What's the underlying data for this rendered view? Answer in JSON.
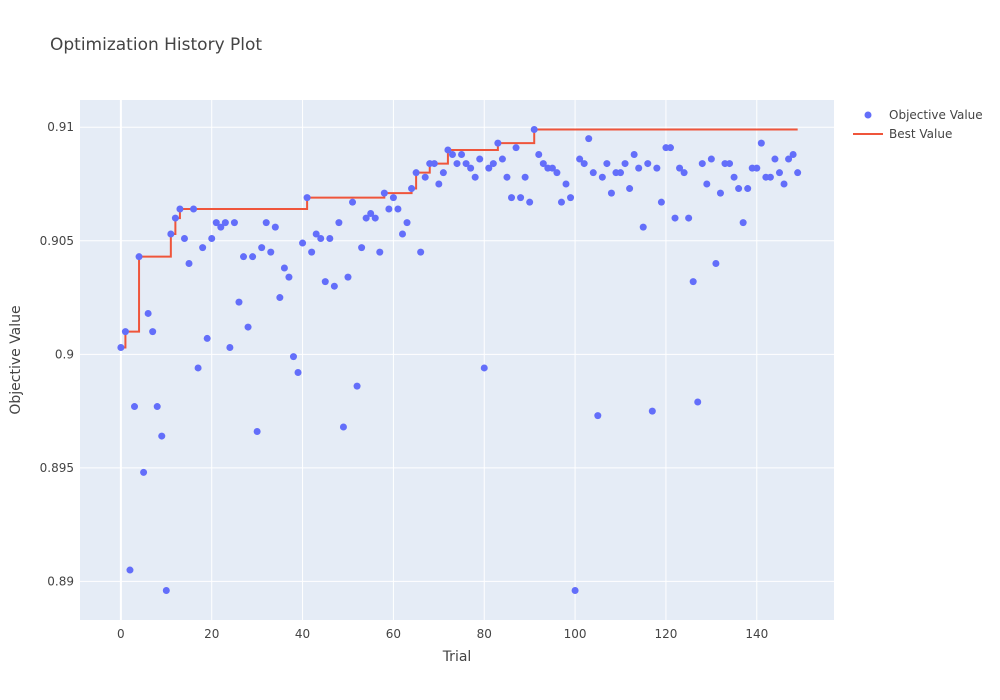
{
  "chart_data": {
    "type": "scatter",
    "title": "Optimization History Plot",
    "xlabel": "Trial",
    "ylabel": "Objective Value",
    "xlim": [
      -9,
      157
    ],
    "ylim": [
      0.8883,
      0.9112
    ],
    "xticks": [
      0,
      20,
      40,
      60,
      80,
      100,
      120,
      140
    ],
    "yticks": [
      0.89,
      0.895,
      0.9,
      0.905,
      0.91
    ],
    "ytick_labels": [
      "0.89",
      "0.895",
      "0.9",
      "0.905",
      "0.91"
    ],
    "grid": true,
    "legend_position": "top-right",
    "series": [
      {
        "name": "Objective Value",
        "mode": "markers",
        "color": "#636efa",
        "x": [
          0,
          1,
          2,
          3,
          4,
          5,
          6,
          7,
          8,
          9,
          10,
          11,
          12,
          13,
          14,
          15,
          16,
          17,
          18,
          19,
          20,
          21,
          22,
          23,
          24,
          25,
          26,
          27,
          28,
          29,
          30,
          31,
          32,
          33,
          34,
          35,
          36,
          37,
          38,
          39,
          40,
          41,
          42,
          43,
          44,
          45,
          46,
          47,
          48,
          49,
          50,
          51,
          52,
          53,
          54,
          55,
          56,
          57,
          58,
          59,
          60,
          61,
          62,
          63,
          64,
          65,
          66,
          67,
          68,
          69,
          70,
          71,
          72,
          73,
          74,
          75,
          76,
          77,
          78,
          79,
          80,
          81,
          82,
          83,
          84,
          85,
          86,
          87,
          88,
          89,
          90,
          91,
          92,
          93,
          94,
          95,
          96,
          97,
          98,
          99,
          100,
          101,
          102,
          103,
          104,
          105,
          106,
          107,
          108,
          109,
          110,
          111,
          112,
          113,
          114,
          115,
          116,
          117,
          118,
          119,
          120,
          121,
          122,
          123,
          124,
          125,
          126,
          127,
          128,
          129,
          130,
          131,
          132,
          133,
          134,
          135,
          136,
          137,
          138,
          139,
          140,
          141,
          142,
          143,
          144,
          145,
          146,
          147,
          148,
          149
        ],
        "y": [
          0.9003,
          0.901,
          0.8905,
          0.8977,
          0.9043,
          0.8948,
          0.9018,
          0.901,
          0.8977,
          0.8964,
          0.8896,
          0.9053,
          0.906,
          0.9064,
          0.9051,
          0.904,
          0.9064,
          0.8994,
          0.9047,
          0.9007,
          0.9051,
          0.9058,
          0.9056,
          0.9058,
          0.9003,
          0.9058,
          0.9023,
          0.9043,
          0.9012,
          0.9043,
          0.8966,
          0.9047,
          0.9058,
          0.9045,
          0.9056,
          0.9025,
          0.9038,
          0.9034,
          0.8999,
          0.8992,
          0.9049,
          0.9069,
          0.9045,
          0.9053,
          0.9051,
          0.9032,
          0.9051,
          0.903,
          0.9058,
          0.8968,
          0.9034,
          0.9067,
          0.8986,
          0.9047,
          0.906,
          0.9062,
          0.906,
          0.9045,
          0.9071,
          0.9064,
          0.9069,
          0.9064,
          0.9053,
          0.9058,
          0.9073,
          0.908,
          0.9045,
          0.9078,
          0.9084,
          0.9084,
          0.9075,
          0.908,
          0.909,
          0.9088,
          0.9084,
          0.9088,
          0.9084,
          0.9082,
          0.9078,
          0.9086,
          0.8994,
          0.9082,
          0.9084,
          0.9093,
          0.9086,
          0.9078,
          0.9069,
          0.9091,
          0.9069,
          0.9078,
          0.9067,
          0.9099,
          0.9088,
          0.9084,
          0.9082,
          0.9082,
          0.908,
          0.9067,
          0.9075,
          0.9069,
          0.8896,
          0.9086,
          0.9084,
          0.9095,
          0.908,
          0.8973,
          0.9078,
          0.9084,
          0.9071,
          0.908,
          0.908,
          0.9084,
          0.9073,
          0.9088,
          0.9082,
          0.9056,
          0.9084,
          0.8975,
          0.9082,
          0.9067,
          0.9091,
          0.9091,
          0.906,
          0.9082,
          0.908,
          0.906,
          0.9032,
          0.8979,
          0.9084,
          0.9075,
          0.9086,
          0.904,
          0.9071,
          0.9084,
          0.9084,
          0.9078,
          0.9073,
          0.9058,
          0.9073,
          0.9082,
          0.9082,
          0.9093,
          0.9078,
          0.9078,
          0.9086,
          0.908,
          0.9075,
          0.9086,
          0.9088,
          0.908
        ]
      },
      {
        "name": "Best Value",
        "mode": "lines",
        "color": "#ef553b",
        "shape": "step-cumulative-max"
      }
    ]
  }
}
